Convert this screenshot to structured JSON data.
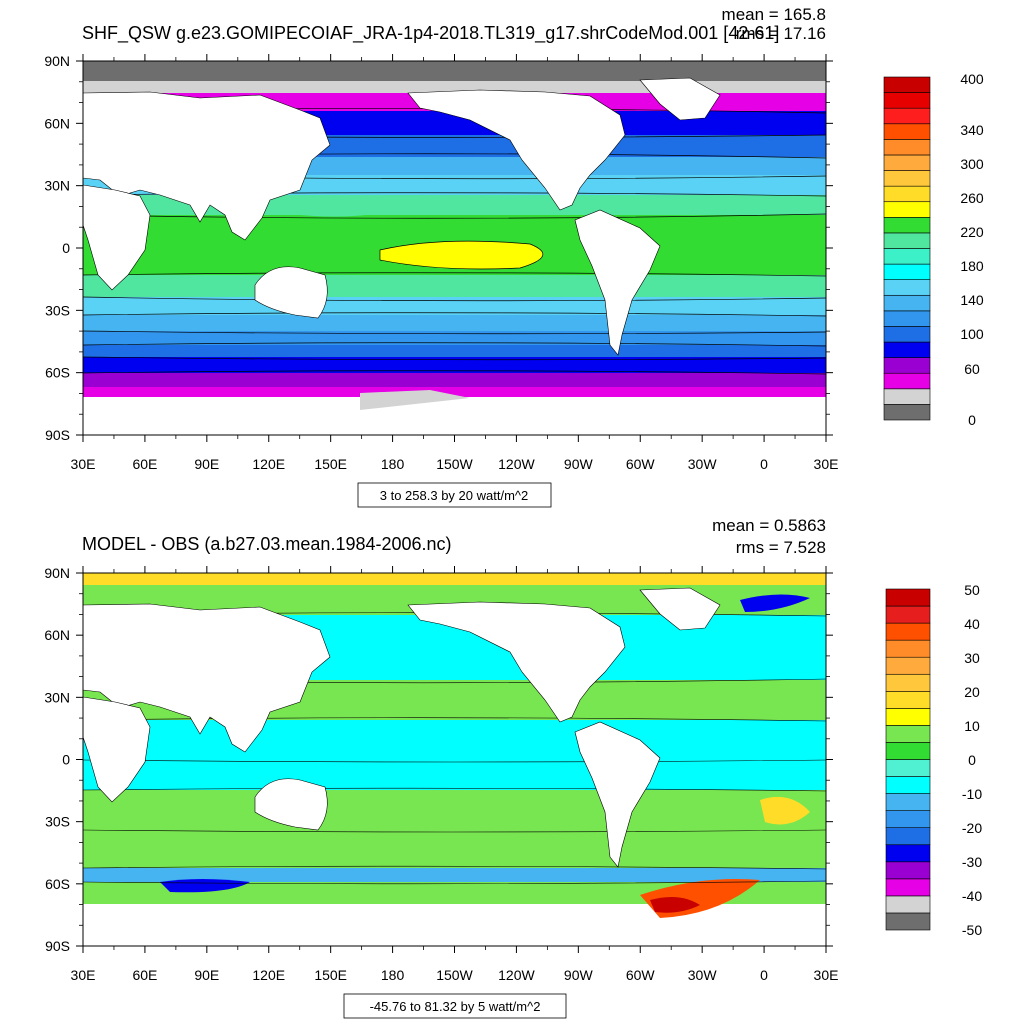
{
  "panels": [
    {
      "title": "SHF_QSW g.e23.GOMIPECOIAF_JRA-1p4-2018.TL319_g17.shrCodeMod.001 [42-61]",
      "stats_mean": "mean = 165.8",
      "stats_rms": "rms = 17.16",
      "contour_info": "3 to 258.3 by 20 watt/m^2",
      "colorbar_labels": [
        "400",
        "340",
        "300",
        "260",
        "220",
        "180",
        "140",
        "100",
        "60",
        "0"
      ]
    },
    {
      "title": "MODEL - OBS (a.b27.03.mean.1984-2006.nc)",
      "stats_mean": "mean = 0.5863",
      "stats_rms": "rms = 7.528",
      "contour_info": "-45.76 to 81.32 by 5 watt/m^2",
      "colorbar_labels": [
        "50",
        "40",
        "30",
        "20",
        "10",
        "0",
        "-10",
        "-20",
        "-30",
        "-40",
        "-50"
      ]
    }
  ],
  "axes": {
    "lat_ticks": [
      "90N",
      "60N",
      "30N",
      "0",
      "30S",
      "60S",
      "90S"
    ],
    "lon_ticks": [
      "30E",
      "60E",
      "90E",
      "120E",
      "150E",
      "180",
      "150W",
      "120W",
      "90W",
      "60W",
      "30W",
      "0",
      "30E"
    ]
  },
  "colors": {
    "top_scale": [
      "#6e6e6e",
      "#d3d3d3",
      "#e600e6",
      "#9a00d2",
      "#0000f0",
      "#1e6ee6",
      "#3296ee",
      "#46b4f0",
      "#5ad2f5",
      "#00ffff",
      "#3cf0c8",
      "#50e6a0",
      "#32dc32",
      "#ffff00",
      "#ffdc28",
      "#ffc83c",
      "#ffaa3c",
      "#ff8c28",
      "#ff5000",
      "#ff1e1e",
      "#e60000",
      "#c80000"
    ],
    "diff_scale": [
      "#6e6e6e",
      "#d3d3d3",
      "#e600e6",
      "#9a00d2",
      "#0000f0",
      "#1e6ee6",
      "#3296ee",
      "#46b4f0",
      "#00ffff",
      "#50f0d2",
      "#32dc32",
      "#78e650",
      "#ffff00",
      "#ffdc28",
      "#ffc83c",
      "#ffaa3c",
      "#ff8c28",
      "#ff5000",
      "#e61e1e",
      "#c80000"
    ],
    "land": "#ffffff"
  }
}
